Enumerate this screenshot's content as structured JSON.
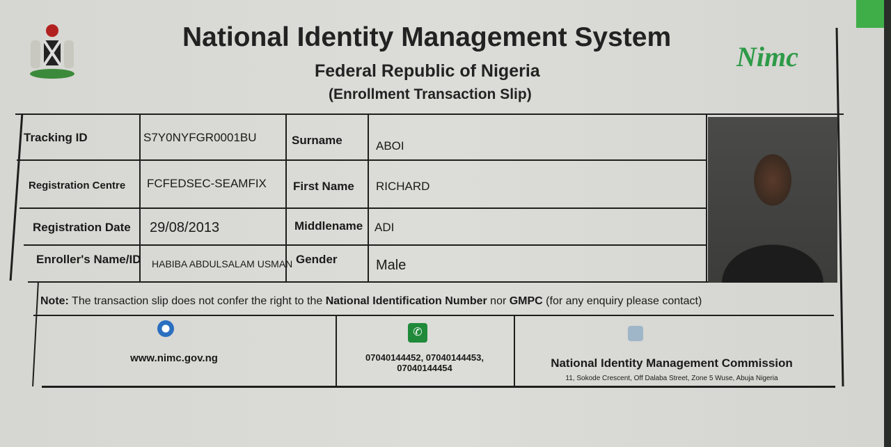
{
  "header": {
    "title": "National Identity Management System",
    "subtitle": "Federal Republic of Nigeria",
    "slip_type": "(Enrollment Transaction Slip)",
    "logo_text": "Nimc"
  },
  "fields": {
    "tracking_id": {
      "label": "Tracking ID",
      "value": "S7Y0NYFGR0001BU"
    },
    "registration_centre": {
      "label": "Registration Centre",
      "value": "FCFEDSEC-SEAMFIX"
    },
    "registration_date": {
      "label": "Registration Date",
      "value": "29/08/2013"
    },
    "enroller": {
      "label": "Enroller's Name/ID",
      "value": "HABIBA ABDULSALAM USMAN"
    },
    "surname": {
      "label": "Surname",
      "value": "ABOI"
    },
    "first_name": {
      "label": "First Name",
      "value": "RICHARD"
    },
    "middlename": {
      "label": "Middlename",
      "value": "ADI"
    },
    "gender": {
      "label": "Gender",
      "value": "Male"
    }
  },
  "note": {
    "prefix": "Note:",
    "text1": " The transaction slip does not confer the right to the ",
    "bold1": "National Identification Number",
    "text2": " nor ",
    "bold2": "GMPC",
    "text3": "  (for any enquiry please contact)"
  },
  "contact": {
    "website": "www.nimc.gov.ng",
    "phones_line1": "07040144452,  07040144453,",
    "phones_line2": "07040144454",
    "org": "National Identity Management Commission",
    "address": "11, Sokode Crescent, Off Dalaba Street, Zone 5 Wuse, Abuja Nigeria"
  },
  "colors": {
    "nimc_green": "#2e9a48",
    "phone_icon": "#1f8a3a",
    "ie_icon": "#2a6fc0"
  }
}
